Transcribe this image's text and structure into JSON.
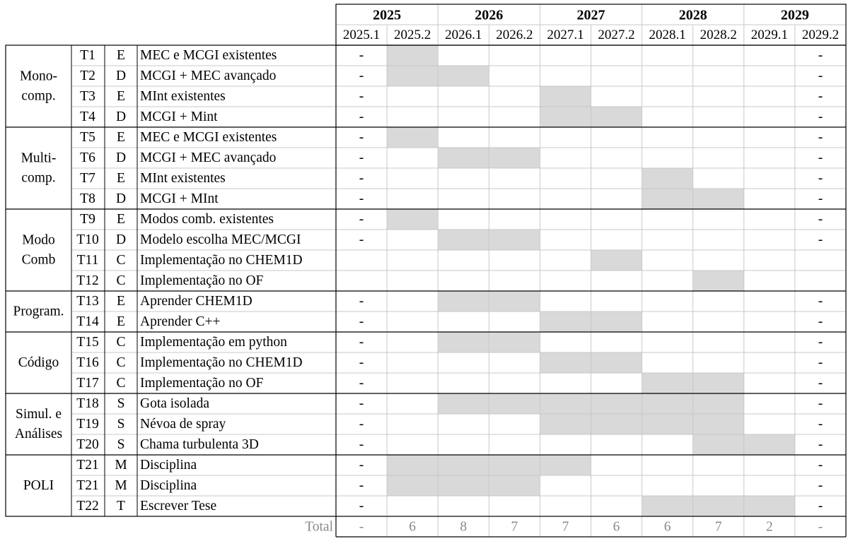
{
  "years": [
    {
      "label": "2025",
      "semesters": [
        "2025.1",
        "2025.2"
      ]
    },
    {
      "label": "2026",
      "semesters": [
        "2026.1",
        "2026.2"
      ]
    },
    {
      "label": "2027",
      "semesters": [
        "2027.1",
        "2027.2"
      ]
    },
    {
      "label": "2028",
      "semesters": [
        "2028.1",
        "2028.2"
      ]
    },
    {
      "label": "2029",
      "semesters": [
        "2029.1",
        "2029.2"
      ]
    }
  ],
  "colors": {
    "bar": "#d9d9d9",
    "grid": "#c8c8c8",
    "border": "#000000",
    "total_text": "#8a8a8a"
  },
  "groups": [
    {
      "lines": [
        "Mono-",
        "comp."
      ],
      "tasks": [
        {
          "id": "T1",
          "type": "E",
          "name": "MEC e MCGI existentes",
          "first": "-",
          "last": "-",
          "active": [
            1
          ]
        },
        {
          "id": "T2",
          "type": "D",
          "name": "MCGI + MEC avançado",
          "first": "-",
          "last": "-",
          "active": [
            1,
            2
          ]
        },
        {
          "id": "T3",
          "type": "E",
          "name": "MInt existentes",
          "first": "-",
          "last": "-",
          "active": [
            4
          ]
        },
        {
          "id": "T4",
          "type": "D",
          "name": "MCGI + Mint",
          "first": "-",
          "last": "-",
          "active": [
            4,
            5
          ]
        }
      ]
    },
    {
      "lines": [
        "Multi-",
        "comp."
      ],
      "tasks": [
        {
          "id": "T5",
          "type": "E",
          "name": "MEC e MCGI existentes",
          "first": "-",
          "last": "-",
          "active": [
            1
          ]
        },
        {
          "id": "T6",
          "type": "D",
          "name": "MCGI + MEC avançado",
          "first": "-",
          "last": "-",
          "active": [
            2,
            3
          ]
        },
        {
          "id": "T7",
          "type": "E",
          "name": "MInt existentes",
          "first": "-",
          "last": "-",
          "active": [
            6
          ]
        },
        {
          "id": "T8",
          "type": "D",
          "name": "MCGI + MInt",
          "first": "-",
          "last": "-",
          "active": [
            6,
            7
          ]
        }
      ]
    },
    {
      "lines": [
        "Modo",
        "Comb"
      ],
      "tasks": [
        {
          "id": "T9",
          "type": "E",
          "name": "Modos comb. existentes",
          "first": "-",
          "last": "-",
          "active": [
            1
          ]
        },
        {
          "id": "T10",
          "type": "D",
          "name": "Modelo escolha MEC/MCGI",
          "first": "-",
          "last": "-",
          "active": [
            2,
            3
          ]
        },
        {
          "id": "T11",
          "type": "C",
          "name": "Implementação no CHEM1D",
          "first": "",
          "last": "",
          "active": [
            5
          ]
        },
        {
          "id": "T12",
          "type": "C",
          "name": "Implementação no OF",
          "first": "",
          "last": "",
          "active": [
            7
          ]
        }
      ]
    },
    {
      "lines": [
        "Program."
      ],
      "tasks": [
        {
          "id": "T13",
          "type": "E",
          "name": "Aprender CHEM1D",
          "first": "-",
          "last": "-",
          "active": [
            2,
            3
          ]
        },
        {
          "id": "T14",
          "type": "E",
          "name": "Aprender C++",
          "first": "-",
          "last": "-",
          "active": [
            4,
            5
          ]
        }
      ]
    },
    {
      "lines": [
        "Código"
      ],
      "tasks": [
        {
          "id": "T15",
          "type": "C",
          "name": "Implementação em python",
          "first": "-",
          "last": "-",
          "active": [
            2,
            3
          ]
        },
        {
          "id": "T16",
          "type": "C",
          "name": "Implementação no CHEM1D",
          "first": "-",
          "last": "-",
          "active": [
            4,
            5
          ]
        },
        {
          "id": "T17",
          "type": "C",
          "name": "Implementação no OF",
          "first": "-",
          "last": "-",
          "active": [
            6,
            7
          ]
        }
      ]
    },
    {
      "lines": [
        "Simul. e",
        "Análises"
      ],
      "tasks": [
        {
          "id": "T18",
          "type": "S",
          "name": "Gota isolada",
          "first": "-",
          "last": "-",
          "active": [
            2,
            3,
            4,
            5,
            6,
            7
          ]
        },
        {
          "id": "T19",
          "type": "S",
          "name": "Névoa de spray",
          "first": "-",
          "last": "-",
          "active": [
            4,
            5,
            6,
            7
          ]
        },
        {
          "id": "T20",
          "type": "S",
          "name": "Chama turbulenta 3D",
          "first": "-",
          "last": "-",
          "active": [
            7,
            8
          ]
        }
      ]
    },
    {
      "lines": [
        "POLI"
      ],
      "tasks": [
        {
          "id": "T21",
          "type": "M",
          "name": "Disciplina",
          "first": "-",
          "last": "-",
          "active": [
            1,
            2,
            3,
            4
          ]
        },
        {
          "id": "T21",
          "type": "M",
          "name": "Disciplina",
          "first": "-",
          "last": "-",
          "active": [
            1,
            2,
            3
          ]
        },
        {
          "id": "T22",
          "type": "T",
          "name": "Escrever Tese",
          "first": "-",
          "last": "-",
          "active": [
            6,
            7,
            8
          ]
        }
      ]
    }
  ],
  "total": {
    "label": "Total",
    "values": [
      "-",
      "6",
      "8",
      "7",
      "7",
      "6",
      "6",
      "7",
      "2",
      "-"
    ]
  }
}
